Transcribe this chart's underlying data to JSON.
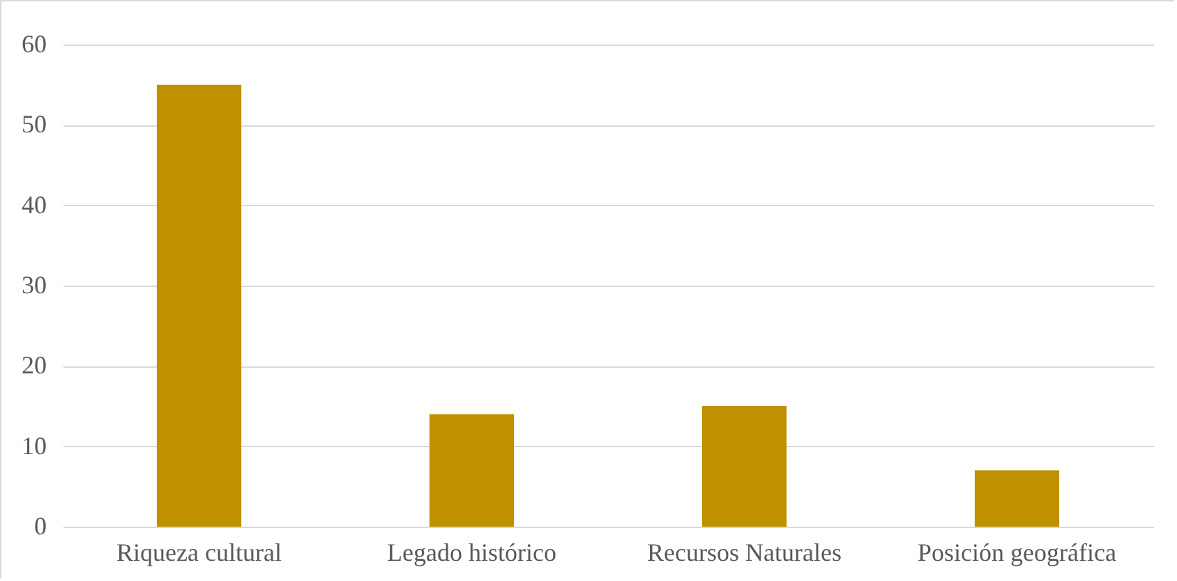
{
  "chart_data": {
    "type": "bar",
    "categories": [
      "Riqueza cultural",
      "Legado histórico",
      "Recursos Naturales",
      "Posición geográfica"
    ],
    "values": [
      55,
      14,
      15,
      7
    ],
    "color": "#bf9000",
    "ylim": [
      0,
      60
    ],
    "yticks": [
      0,
      10,
      20,
      30,
      40,
      50,
      60
    ],
    "grid": "y"
  }
}
